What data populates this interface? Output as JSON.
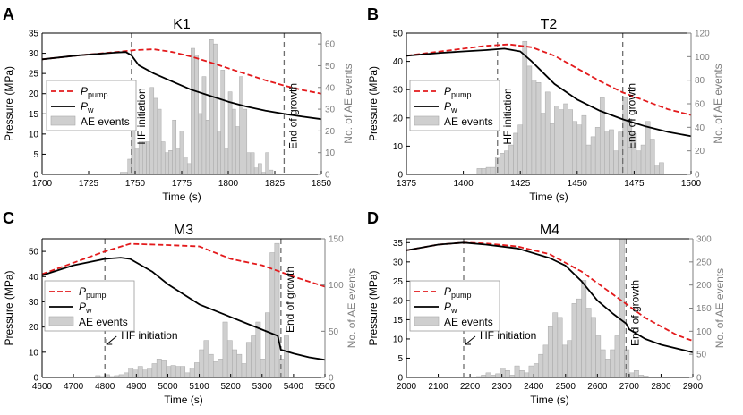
{
  "chart_data": [
    {
      "type": "line+bar",
      "panel_label": "A",
      "title": "K1",
      "xlabel": "Time (s)",
      "ylabel": "Pressure (MPa)",
      "y2label": "No. of AE events",
      "xlim": [
        1700,
        1850
      ],
      "ylim": [
        0,
        35
      ],
      "y2lim": [
        0,
        65
      ],
      "xticks": [
        1700,
        1725,
        1750,
        1775,
        1800,
        1825,
        1850
      ],
      "yticks": [
        0,
        5,
        10,
        15,
        20,
        25,
        30,
        35
      ],
      "y2ticks": [
        0,
        10,
        20,
        30,
        40,
        50,
        60
      ],
      "legend": {
        "pump_base": "P",
        "pump_sub": "pump",
        "w_base": "P",
        "w_sub": "w",
        "ae": "AE events",
        "position": "left-middle"
      },
      "markers": [
        {
          "label": "HF initiation",
          "x": 1748
        },
        {
          "label": "End of growth",
          "x": 1830
        }
      ],
      "series": [
        {
          "name": "P_pump",
          "style": "dashed",
          "color": "#e31a1c",
          "x": [
            1700,
            1720,
            1740,
            1750,
            1760,
            1770,
            1780,
            1790,
            1800,
            1810,
            1820,
            1830,
            1840,
            1850
          ],
          "y": [
            28.5,
            29.5,
            30.3,
            30.8,
            31.0,
            30.3,
            29.2,
            27.8,
            26.3,
            24.8,
            23.3,
            22.0,
            20.9,
            20.0
          ]
        },
        {
          "name": "P_w",
          "style": "solid",
          "color": "#000000",
          "x": [
            1700,
            1720,
            1740,
            1745,
            1748,
            1752,
            1760,
            1770,
            1780,
            1790,
            1800,
            1810,
            1820,
            1830,
            1840,
            1850
          ],
          "y": [
            28.5,
            29.5,
            30.2,
            30.3,
            29.5,
            27.0,
            25.0,
            23.0,
            21.0,
            19.5,
            18.0,
            16.8,
            15.8,
            15.0,
            14.3,
            13.7
          ]
        },
        {
          "name": "AE events",
          "style": "bar",
          "color": "#cccccc",
          "bin_start": 1742,
          "bin_width": 2,
          "counts": [
            1,
            1,
            7,
            28,
            12,
            15,
            15,
            15,
            40,
            35,
            30,
            15,
            10,
            11,
            25,
            12,
            20,
            8,
            5,
            58,
            55,
            28,
            45,
            25,
            62,
            60,
            20,
            48,
            12,
            38,
            30,
            22,
            45,
            30,
            10,
            10,
            3,
            5,
            1,
            10,
            2
          ]
        }
      ]
    },
    {
      "type": "line+bar",
      "panel_label": "B",
      "title": "T2",
      "xlabel": "Time (s)",
      "ylabel": "Pressure (MPa)",
      "y2label": "No. of AE events",
      "xlim": [
        1375,
        1500
      ],
      "ylim": [
        0,
        50
      ],
      "y2lim": [
        0,
        120
      ],
      "xticks": [
        1375,
        1400,
        1425,
        1450,
        1475,
        1500
      ],
      "yticks": [
        0,
        10,
        20,
        30,
        40,
        50
      ],
      "y2ticks": [
        0,
        20,
        40,
        60,
        80,
        100,
        120
      ],
      "legend": {
        "pump_base": "P",
        "pump_sub": "pump",
        "w_base": "P",
        "w_sub": "w",
        "ae": "AE events",
        "position": "left-middle"
      },
      "markers": [
        {
          "label": "HF initiation",
          "x": 1415
        },
        {
          "label": "End of growth",
          "x": 1470
        }
      ],
      "series": [
        {
          "name": "P_pump",
          "style": "dashed",
          "color": "#e31a1c",
          "x": [
            1375,
            1390,
            1400,
            1410,
            1420,
            1430,
            1440,
            1450,
            1460,
            1470,
            1480,
            1490,
            1500
          ],
          "y": [
            42.0,
            43.5,
            44.5,
            45.5,
            46.0,
            45.0,
            42.0,
            37.5,
            33.0,
            29.0,
            26.0,
            23.0,
            21.0
          ]
        },
        {
          "name": "P_w",
          "style": "solid",
          "color": "#000000",
          "x": [
            1375,
            1390,
            1400,
            1410,
            1418,
            1425,
            1430,
            1435,
            1440,
            1450,
            1460,
            1470,
            1480,
            1490,
            1500
          ],
          "y": [
            42.0,
            43.0,
            43.5,
            44.0,
            44.5,
            43.5,
            40.0,
            36.0,
            32.0,
            26.5,
            22.5,
            19.5,
            17.0,
            15.0,
            13.5
          ]
        },
        {
          "name": "AE events",
          "style": "bar",
          "color": "#cccccc",
          "bin_start": 1406,
          "bin_width": 2,
          "counts": [
            5,
            5,
            6,
            6,
            15,
            18,
            20,
            25,
            35,
            42,
            113,
            92,
            80,
            78,
            52,
            70,
            43,
            58,
            55,
            60,
            55,
            45,
            42,
            50,
            25,
            32,
            40,
            65,
            37,
            38,
            20,
            36,
            65,
            47,
            35,
            20,
            25,
            45,
            30,
            8,
            10
          ]
        }
      ]
    },
    {
      "type": "line+bar",
      "panel_label": "C",
      "title": "M3",
      "xlabel": "Time (s)",
      "ylabel": "Pressure (MPa)",
      "y2label": "No. of AE events",
      "xlim": [
        4600,
        5500
      ],
      "ylim": [
        0,
        55
      ],
      "y2lim": [
        0,
        150
      ],
      "xticks": [
        4600,
        4700,
        4800,
        4900,
        5000,
        5100,
        5200,
        5300,
        5400,
        5500
      ],
      "yticks": [
        0,
        10,
        20,
        30,
        40,
        50
      ],
      "y2ticks": [
        0,
        50,
        100,
        150
      ],
      "legend": {
        "pump_base": "P",
        "pump_sub": "pump",
        "w_base": "P",
        "w_sub": "w",
        "ae": "AE events",
        "position": "right-middle"
      },
      "markers": [
        {
          "label": "HF initiation",
          "x": 4800
        },
        {
          "label": "End of growth",
          "x": 5360
        }
      ],
      "series": [
        {
          "name": "P_pump",
          "style": "dashed",
          "color": "#e31a1c",
          "x": [
            4600,
            4700,
            4800,
            4880,
            5000,
            5100,
            5200,
            5300,
            5400,
            5500
          ],
          "y": [
            41.0,
            45.5,
            50.0,
            53.0,
            52.5,
            52.0,
            47.0,
            44.5,
            40.0,
            36.0
          ]
        },
        {
          "name": "P_w",
          "style": "solid",
          "color": "#000000",
          "x": [
            4600,
            4700,
            4800,
            4850,
            4880,
            4950,
            5000,
            5100,
            5200,
            5300,
            5350,
            5360,
            5400,
            5450,
            5500
          ],
          "y": [
            40.5,
            44.5,
            47.0,
            47.5,
            47.0,
            42.0,
            37.0,
            29.0,
            24.0,
            19.0,
            16.5,
            11.0,
            9.5,
            8.0,
            7.0
          ]
        },
        {
          "name": "AE events",
          "style": "bar",
          "color": "#cccccc",
          "bin_start": 4770,
          "bin_width": 15,
          "counts": [
            2,
            1,
            3,
            1,
            2,
            3,
            5,
            10,
            8,
            12,
            8,
            10,
            15,
            20,
            18,
            12,
            13,
            12,
            12,
            5,
            10,
            16,
            30,
            40,
            25,
            17,
            20,
            60,
            40,
            30,
            25,
            15,
            38,
            45,
            60,
            20,
            70,
            135,
            145,
            20,
            45
          ]
        }
      ]
    },
    {
      "type": "line+bar",
      "panel_label": "D",
      "title": "M4",
      "xlabel": "Time (s)",
      "ylabel": "Pressure (MPa)",
      "y2label": "No. of AE events",
      "xlim": [
        2000,
        2900
      ],
      "ylim": [
        0,
        36
      ],
      "y2lim": [
        0,
        300
      ],
      "xticks": [
        2000,
        2100,
        2200,
        2300,
        2400,
        2500,
        2600,
        2700,
        2800,
        2900
      ],
      "yticks": [
        0,
        5,
        10,
        15,
        20,
        25,
        30,
        35
      ],
      "y2ticks": [
        0,
        50,
        100,
        150,
        200,
        250,
        300
      ],
      "legend": {
        "pump_base": "P",
        "pump_sub": "pump",
        "w_base": "P",
        "w_sub": "w",
        "ae": "AE events",
        "position": "left-middle"
      },
      "markers": [
        {
          "label": "HF initiation",
          "x": 2180
        },
        {
          "label": "End of growth",
          "x": 2690
        }
      ],
      "series": [
        {
          "name": "P_pump",
          "style": "dashed",
          "color": "#e31a1c",
          "x": [
            2000,
            2100,
            2180,
            2250,
            2350,
            2450,
            2550,
            2650,
            2750,
            2850,
            2900
          ],
          "y": [
            33.0,
            34.5,
            35.0,
            34.8,
            34.0,
            32.0,
            27.5,
            21.5,
            15.5,
            11.0,
            9.5
          ]
        },
        {
          "name": "P_w",
          "style": "solid",
          "color": "#000000",
          "x": [
            2000,
            2100,
            2180,
            2250,
            2350,
            2450,
            2500,
            2550,
            2600,
            2650,
            2690,
            2700,
            2750,
            2800,
            2900
          ],
          "y": [
            33.0,
            34.5,
            35.0,
            34.5,
            33.5,
            31.0,
            29.0,
            25.0,
            20.0,
            16.5,
            14.0,
            12.5,
            10.0,
            8.5,
            6.5
          ]
        },
        {
          "name": "AE events",
          "style": "bar",
          "color": "#cccccc",
          "bin_start": 2220,
          "bin_width": 15,
          "counts": [
            2,
            5,
            10,
            5,
            8,
            20,
            15,
            5,
            25,
            15,
            10,
            25,
            30,
            50,
            70,
            110,
            140,
            130,
            70,
            80,
            160,
            170,
            210,
            150,
            130,
            90,
            60,
            40,
            60,
            90,
            300,
            60,
            10,
            15,
            5,
            3
          ]
        }
      ]
    }
  ]
}
